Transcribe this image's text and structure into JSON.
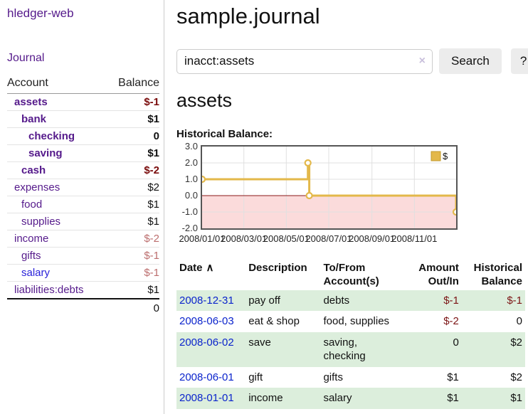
{
  "sidebar": {
    "brand": "hledger-web",
    "journal_link": "Journal",
    "accounts": {
      "header": {
        "account": "Account",
        "balance": "Balance"
      },
      "rows": [
        {
          "name": "assets",
          "level": 0,
          "bold": true,
          "color": "purple",
          "balance": "$-1",
          "balance_class": "negbold"
        },
        {
          "name": "bank",
          "level": 1,
          "bold": true,
          "color": "purple",
          "balance": "$1",
          "balance_class": "bold"
        },
        {
          "name": "checking",
          "level": 2,
          "bold": true,
          "color": "purple",
          "balance": "0",
          "balance_class": "bold"
        },
        {
          "name": "saving",
          "level": 2,
          "bold": true,
          "color": "purple",
          "balance": "$1",
          "balance_class": "bold"
        },
        {
          "name": "cash",
          "level": 1,
          "bold": true,
          "color": "purple",
          "balance": "$-2",
          "balance_class": "negbold"
        },
        {
          "name": "expenses",
          "level": 0,
          "bold": false,
          "color": "purple",
          "balance": "$2",
          "balance_class": "plain"
        },
        {
          "name": "food",
          "level": 1,
          "bold": false,
          "color": "purple",
          "balance": "$1",
          "balance_class": "plain"
        },
        {
          "name": "supplies",
          "level": 1,
          "bold": false,
          "color": "purple",
          "balance": "$1",
          "balance_class": "plain"
        },
        {
          "name": "income",
          "level": 0,
          "bold": false,
          "color": "purple",
          "balance": "$-2",
          "balance_class": "muted"
        },
        {
          "name": "gifts",
          "level": 1,
          "bold": false,
          "color": "purple",
          "balance": "$-1",
          "balance_class": "muted"
        },
        {
          "name": "salary",
          "level": 1,
          "bold": false,
          "color": "blue",
          "balance": "$-1",
          "balance_class": "muted"
        },
        {
          "name": "liabilities:debts",
          "level": 0,
          "bold": false,
          "color": "purple",
          "balance": "$1",
          "balance_class": "plain"
        }
      ],
      "total": "0"
    }
  },
  "main": {
    "title": "sample.journal",
    "search": {
      "query": "inacct:assets",
      "clear_icon": "×",
      "button_label": "Search",
      "help_label": "?"
    },
    "account_heading": "assets",
    "chart_title": "Historical Balance:"
  },
  "chart_data": {
    "type": "line",
    "step": true,
    "title": "Historical Balance",
    "legend": "$",
    "legend_position": "top-right",
    "ylim": [
      -2,
      3
    ],
    "y_ticks": [
      "3.0",
      "2.0",
      "1.0",
      "0.0",
      "-1.0",
      "-2.0"
    ],
    "x_start": "2008-01-01",
    "x_end": "2008-12-31",
    "x_ticks": [
      "2008/01/01",
      "2008/03/01",
      "2008/05/01",
      "2008/07/01",
      "2008/09/01",
      "2008/11/01"
    ],
    "series": [
      {
        "name": "$",
        "points": [
          [
            "2008-01-01",
            1
          ],
          [
            "2008-06-01",
            2
          ],
          [
            "2008-06-03",
            0
          ],
          [
            "2008-12-31",
            -1
          ]
        ]
      }
    ],
    "line_color": "#e3b84a",
    "marker_fill": "#ffffff",
    "zero_line_color": "#8b1a1a",
    "negative_region_color": "#fbdbdb",
    "grid_color": "#e0e0e0"
  },
  "register": {
    "columns": [
      {
        "key": "date",
        "label": "Date",
        "align": "left",
        "sort": "∧",
        "sortable": true
      },
      {
        "key": "description",
        "label": "Description",
        "align": "left",
        "sortable": false
      },
      {
        "key": "accounts",
        "label": "To/From Account(s)",
        "align": "left",
        "sortable": false
      },
      {
        "key": "amount",
        "label": "Amount Out/In",
        "align": "right",
        "sortable": false
      },
      {
        "key": "balance",
        "label": "Historical Balance",
        "align": "right",
        "sortable": false
      }
    ],
    "rows": [
      {
        "date": "2008-12-31",
        "description": "pay off",
        "accounts": "debts",
        "amount": "$-1",
        "amount_negative": true,
        "balance": "$-1",
        "balance_negative": true
      },
      {
        "date": "2008-06-03",
        "description": "eat & shop",
        "accounts": "food, supplies",
        "amount": "$-2",
        "amount_negative": true,
        "balance": "0",
        "balance_negative": false
      },
      {
        "date": "2008-06-02",
        "description": "save",
        "accounts": "saving, checking",
        "amount": "0",
        "amount_negative": false,
        "balance": "$2",
        "balance_negative": false
      },
      {
        "date": "2008-06-01",
        "description": "gift",
        "accounts": "gifts",
        "amount": "$1",
        "amount_negative": false,
        "balance": "$2",
        "balance_negative": false
      },
      {
        "date": "2008-01-01",
        "description": "income",
        "accounts": "salary",
        "amount": "$1",
        "amount_negative": false,
        "balance": "$1",
        "balance_negative": false
      }
    ]
  },
  "colors": {
    "link_purple": "#551a8b",
    "link_blue": "#2a22d9",
    "date_link_blue": "#0b24cc",
    "negative_bold": "#7a0c0c",
    "negative": "#7c1515",
    "negative_muted": "#bc6e6e",
    "row_stripe_green": "#dceedc",
    "chart_gold": "#e3b84a",
    "chart_pink": "#fbdbdb",
    "zero_line_maroon": "#8b1a1a"
  }
}
